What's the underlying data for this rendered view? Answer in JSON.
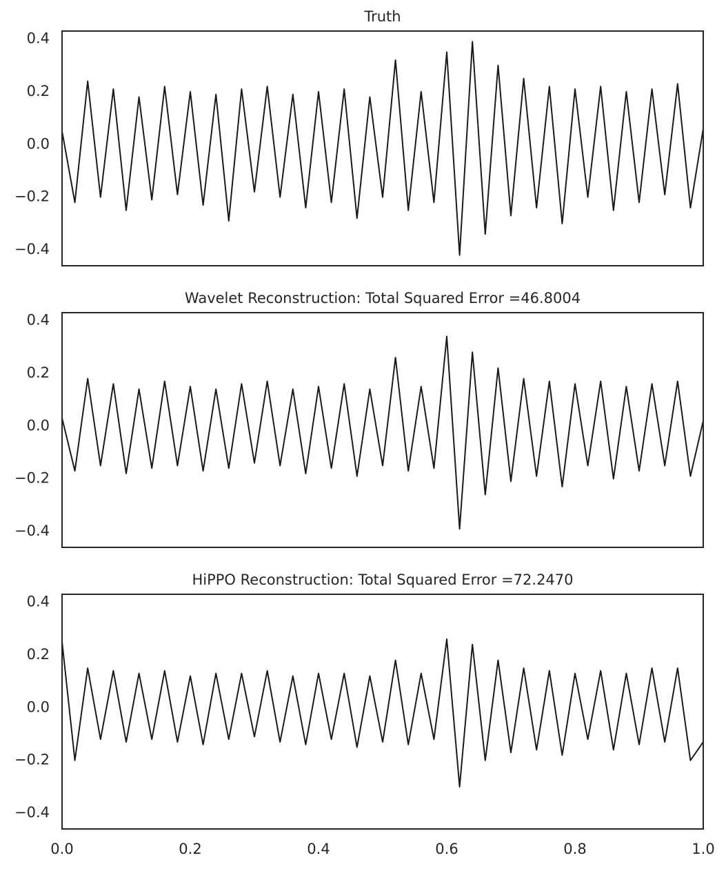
{
  "chart_data": [
    {
      "type": "line",
      "title": "Truth",
      "color": "#1a1a1a",
      "x": [
        0,
        0.02,
        0.04,
        0.06,
        0.08,
        0.1,
        0.12,
        0.14,
        0.16,
        0.18,
        0.2,
        0.22,
        0.24,
        0.26,
        0.28,
        0.3,
        0.32,
        0.34,
        0.36,
        0.38,
        0.4,
        0.42,
        0.44,
        0.46,
        0.48,
        0.5,
        0.52,
        0.54,
        0.56,
        0.58,
        0.6,
        0.62,
        0.64,
        0.66,
        0.68,
        0.7,
        0.72,
        0.74,
        0.76,
        0.78,
        0.8,
        0.82,
        0.84,
        0.86,
        0.88,
        0.9,
        0.92,
        0.94,
        0.96,
        0.98,
        1
      ],
      "values": [
        0.05,
        -0.22,
        0.24,
        -0.2,
        0.21,
        -0.25,
        0.18,
        -0.21,
        0.22,
        -0.19,
        0.2,
        -0.23,
        0.19,
        -0.29,
        0.21,
        -0.18,
        0.22,
        -0.2,
        0.19,
        -0.24,
        0.2,
        -0.22,
        0.21,
        -0.28,
        0.18,
        -0.2,
        0.32,
        -0.25,
        0.2,
        -0.22,
        0.35,
        -0.42,
        0.39,
        -0.34,
        0.3,
        -0.27,
        0.25,
        -0.24,
        0.22,
        -0.3,
        0.21,
        -0.2,
        0.22,
        -0.25,
        0.2,
        -0.22,
        0.21,
        -0.19,
        0.23,
        -0.24,
        0.06
      ],
      "xlim": [
        0,
        1
      ],
      "ylim": [
        -0.46,
        0.43
      ],
      "yticks": [
        {
          "value": -0.4,
          "label": "−0.4"
        },
        {
          "value": -0.2,
          "label": "−0.2"
        },
        {
          "value": 0,
          "label": "0.0"
        },
        0.2,
        0.4
      ]
    },
    {
      "type": "line",
      "title": "Wavelet Reconstruction: Total Squared Error =46.8004",
      "color": "#1a1a1a",
      "x": [
        0,
        0.02,
        0.04,
        0.06,
        0.08,
        0.1,
        0.12,
        0.14,
        0.16,
        0.18,
        0.2,
        0.22,
        0.24,
        0.26,
        0.28,
        0.3,
        0.32,
        0.34,
        0.36,
        0.38,
        0.4,
        0.42,
        0.44,
        0.46,
        0.48,
        0.5,
        0.52,
        0.54,
        0.56,
        0.58,
        0.6,
        0.62,
        0.64,
        0.66,
        0.68,
        0.7,
        0.72,
        0.74,
        0.76,
        0.78,
        0.8,
        0.82,
        0.84,
        0.86,
        0.88,
        0.9,
        0.92,
        0.94,
        0.96,
        0.98,
        1
      ],
      "values": [
        0.03,
        -0.17,
        0.18,
        -0.15,
        0.16,
        -0.18,
        0.14,
        -0.16,
        0.17,
        -0.15,
        0.15,
        -0.17,
        0.14,
        -0.16,
        0.16,
        -0.14,
        0.17,
        -0.15,
        0.14,
        -0.18,
        0.15,
        -0.16,
        0.16,
        -0.19,
        0.14,
        -0.15,
        0.26,
        -0.17,
        0.15,
        -0.16,
        0.34,
        -0.39,
        0.28,
        -0.26,
        0.22,
        -0.21,
        0.18,
        -0.19,
        0.17,
        -0.23,
        0.16,
        -0.15,
        0.17,
        -0.2,
        0.15,
        -0.17,
        0.16,
        -0.15,
        0.17,
        -0.19,
        0.02
      ],
      "xlim": [
        0,
        1
      ],
      "ylim": [
        -0.46,
        0.43
      ],
      "yticks": [
        {
          "value": -0.4,
          "label": "−0.4"
        },
        {
          "value": -0.2,
          "label": "−0.2"
        },
        {
          "value": 0,
          "label": "0.0"
        },
        0.2,
        0.4
      ]
    },
    {
      "type": "line",
      "title": "HiPPO Reconstruction: Total Squared Error =72.2470",
      "color": "#1a1a1a",
      "x": [
        0,
        0.02,
        0.04,
        0.06,
        0.08,
        0.1,
        0.12,
        0.14,
        0.16,
        0.18,
        0.2,
        0.22,
        0.24,
        0.26,
        0.28,
        0.3,
        0.32,
        0.34,
        0.36,
        0.38,
        0.4,
        0.42,
        0.44,
        0.46,
        0.48,
        0.5,
        0.52,
        0.54,
        0.56,
        0.58,
        0.6,
        0.62,
        0.64,
        0.66,
        0.68,
        0.7,
        0.72,
        0.74,
        0.76,
        0.78,
        0.8,
        0.82,
        0.84,
        0.86,
        0.88,
        0.9,
        0.92,
        0.94,
        0.96,
        0.98,
        1
      ],
      "values": [
        0.25,
        -0.2,
        0.15,
        -0.12,
        0.14,
        -0.13,
        0.13,
        -0.12,
        0.14,
        -0.13,
        0.12,
        -0.14,
        0.13,
        -0.12,
        0.13,
        -0.11,
        0.14,
        -0.13,
        0.12,
        -0.14,
        0.13,
        -0.12,
        0.13,
        -0.15,
        0.12,
        -0.13,
        0.18,
        -0.14,
        0.13,
        -0.12,
        0.26,
        -0.3,
        0.24,
        -0.2,
        0.18,
        -0.17,
        0.15,
        -0.16,
        0.14,
        -0.18,
        0.13,
        -0.12,
        0.14,
        -0.16,
        0.13,
        -0.14,
        0.15,
        -0.13,
        0.15,
        -0.2,
        -0.13
      ],
      "xlim": [
        0,
        1
      ],
      "ylim": [
        -0.46,
        0.43
      ],
      "yticks": [
        {
          "value": -0.4,
          "label": "−0.4"
        },
        {
          "value": -0.2,
          "label": "−0.2"
        },
        {
          "value": 0,
          "label": "0.0"
        },
        0.2,
        0.4
      ],
      "xticks": [
        {
          "value": 0,
          "label": "0.0"
        },
        0.2,
        0.4,
        0.6,
        0.8,
        {
          "value": 1,
          "label": "1.0"
        }
      ]
    }
  ]
}
